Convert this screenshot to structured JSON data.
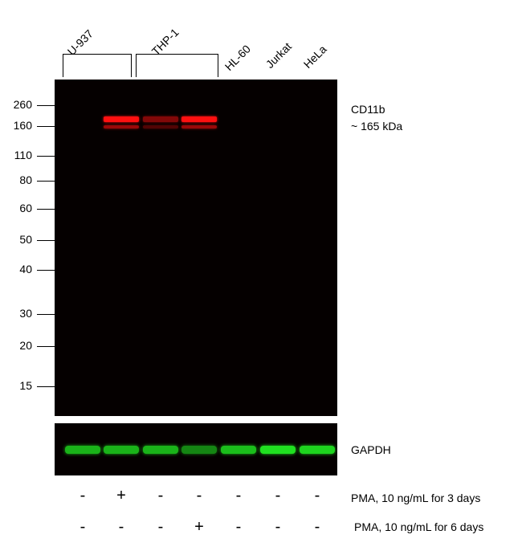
{
  "groups": [
    {
      "label": "U-937"
    },
    {
      "label": "THP-1"
    }
  ],
  "lanes": [
    {
      "label": "HL-60"
    },
    {
      "label": "Jurkat"
    },
    {
      "label": "HeLa"
    }
  ],
  "markers": [
    "260",
    "160",
    "110",
    "80",
    "60",
    "50",
    "40",
    "30",
    "20",
    "15"
  ],
  "target": {
    "name": "CD11b",
    "size": "~ 165 kDa"
  },
  "loading_control": "GAPDH",
  "treatments": [
    {
      "label": "PMA, 10 ng/mL for 3 days",
      "signs": [
        "-",
        "+",
        "-",
        "-",
        "-",
        "-",
        "-"
      ]
    },
    {
      "label": "PMA, 10 ng/mL for 6 days",
      "signs": [
        "-",
        "-",
        "-",
        "+",
        "-",
        "-",
        "-"
      ]
    }
  ],
  "band_intensity": {
    "cd11b": [
      0,
      1,
      0.5,
      1,
      0,
      0,
      0
    ],
    "gapdh": [
      0.8,
      0.8,
      0.8,
      0.6,
      0.85,
      1,
      0.95
    ]
  },
  "colors": {
    "cd11b": "#ff1010",
    "gapdh": "#20e020",
    "background": "#050000"
  }
}
